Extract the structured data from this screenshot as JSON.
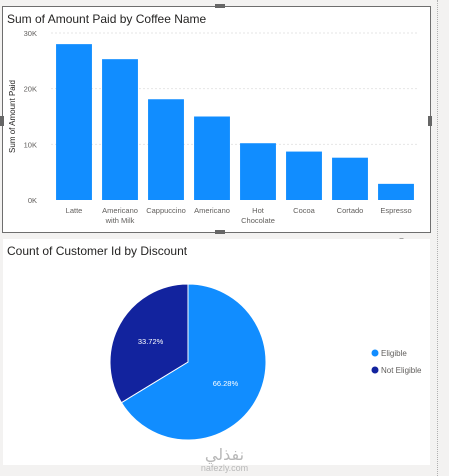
{
  "bar_visual": {
    "title": "Sum of Amount Paid by Coffee Name"
  },
  "pie_visual": {
    "title": "Count of Customer Id by Discount"
  },
  "watermark": {
    "arabic": "نفذلي",
    "latin": "nafezly.com"
  },
  "icons": {
    "filter": "filter-icon",
    "focus": "focus-mode-icon",
    "more": "more-options-icon"
  },
  "chart_data": [
    {
      "type": "bar",
      "title": "Sum of Amount Paid by Coffee Name",
      "ylabel": "Sum of Amount Paid",
      "xlabel": "",
      "categories": [
        "Latte",
        "Americano with Milk",
        "Cappuccino",
        "Americano",
        "Hot Chocolate",
        "Cocoa",
        "Cortado",
        "Espresso"
      ],
      "category_lines": [
        [
          "Latte"
        ],
        [
          "Americano",
          "with Milk"
        ],
        [
          "Cappuccino"
        ],
        [
          "Americano"
        ],
        [
          "Hot",
          "Chocolate"
        ],
        [
          "Cocoa"
        ],
        [
          "Cortado"
        ],
        [
          "Espresso"
        ]
      ],
      "values": [
        28000,
        25300,
        18100,
        15000,
        10200,
        8700,
        7600,
        2900
      ],
      "ylim": [
        0,
        30000
      ],
      "yticks": [
        0,
        10000,
        20000,
        30000
      ],
      "ytick_labels": [
        "0K",
        "10K",
        "20K",
        "30K"
      ],
      "color": "#118dff",
      "grid": true
    },
    {
      "type": "pie",
      "title": "Count of Customer Id by Discount",
      "slices": [
        {
          "name": "Eligible",
          "value": 66.28,
          "label": "66.28%",
          "color": "#118dff"
        },
        {
          "name": "Not Eligible",
          "value": 33.72,
          "label": "33.72%",
          "color": "#12239e"
        }
      ],
      "legend": "right"
    }
  ]
}
